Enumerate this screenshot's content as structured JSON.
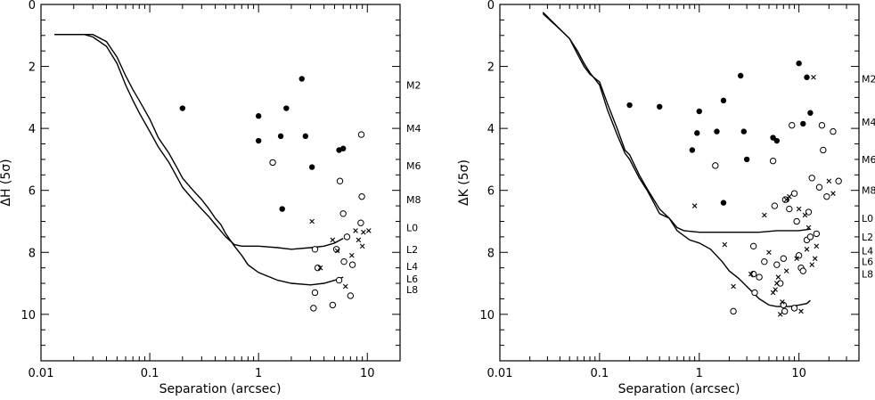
{
  "chart_data": [
    {
      "type": "scatter",
      "xlabel": "Separation (arcsec)",
      "ylabel": "ΔH (5σ)",
      "xscale": "log",
      "xlim": [
        0.01,
        20
      ],
      "ylim": [
        11.5,
        0
      ],
      "grid": false,
      "x_ticks": [
        "0.01",
        "0.1",
        "1",
        "10"
      ],
      "y_ticks": [
        "0",
        "2",
        "4",
        "6",
        "8",
        "10"
      ],
      "spectral_type_labels": [
        {
          "label": "M2",
          "y": 2.6
        },
        {
          "label": "M4",
          "y": 4.0
        },
        {
          "label": "M6",
          "y": 5.2
        },
        {
          "label": "M8",
          "y": 6.3
        },
        {
          "label": "L0",
          "y": 7.2
        },
        {
          "label": "L2",
          "y": 7.9
        },
        {
          "label": "L4",
          "y": 8.45
        },
        {
          "label": "L6",
          "y": 8.85
        },
        {
          "label": "L8",
          "y": 9.2
        }
      ],
      "series": [
        {
          "marker": "line",
          "points": [
            [
              0.0133,
              0.97
            ],
            [
              0.025,
              0.97
            ],
            [
              0.03,
              1.05
            ],
            [
              0.04,
              1.35
            ],
            [
              0.05,
              1.9
            ],
            [
              0.06,
              2.6
            ],
            [
              0.07,
              3.1
            ],
            [
              0.08,
              3.5
            ],
            [
              0.1,
              4.1
            ],
            [
              0.12,
              4.6
            ],
            [
              0.15,
              5.1
            ],
            [
              0.18,
              5.6
            ],
            [
              0.2,
              5.9
            ],
            [
              0.25,
              6.3
            ],
            [
              0.3,
              6.6
            ],
            [
              0.35,
              6.85
            ],
            [
              0.4,
              7.1
            ],
            [
              0.5,
              7.5
            ],
            [
              0.6,
              7.75
            ],
            [
              0.7,
              7.8
            ],
            [
              1.0,
              7.8
            ],
            [
              1.5,
              7.85
            ],
            [
              2.0,
              7.9
            ],
            [
              3.0,
              7.85
            ],
            [
              4.0,
              7.8
            ],
            [
              5.0,
              7.7
            ],
            [
              6.0,
              7.55
            ]
          ]
        },
        {
          "marker": "line",
          "points": [
            [
              0.0133,
              0.97
            ],
            [
              0.03,
              0.97
            ],
            [
              0.04,
              1.2
            ],
            [
              0.05,
              1.7
            ],
            [
              0.06,
              2.3
            ],
            [
              0.07,
              2.75
            ],
            [
              0.08,
              3.1
            ],
            [
              0.1,
              3.7
            ],
            [
              0.12,
              4.3
            ],
            [
              0.15,
              4.8
            ],
            [
              0.18,
              5.3
            ],
            [
              0.2,
              5.6
            ],
            [
              0.25,
              6.0
            ],
            [
              0.3,
              6.3
            ],
            [
              0.35,
              6.6
            ],
            [
              0.4,
              6.9
            ],
            [
              0.45,
              7.1
            ],
            [
              0.5,
              7.4
            ],
            [
              0.6,
              7.8
            ],
            [
              0.7,
              8.1
            ],
            [
              0.8,
              8.4
            ],
            [
              1.0,
              8.65
            ],
            [
              1.5,
              8.9
            ],
            [
              2.0,
              9.0
            ],
            [
              3.0,
              9.05
            ],
            [
              4.0,
              9.0
            ],
            [
              5.0,
              8.9
            ],
            [
              6.0,
              8.8
            ]
          ]
        },
        {
          "marker": "filled-circle",
          "points": [
            [
              0.2,
              3.35
            ],
            [
              1.0,
              3.6
            ],
            [
              1.0,
              4.4
            ],
            [
              1.6,
              4.25
            ],
            [
              1.8,
              3.35
            ],
            [
              1.65,
              6.6
            ],
            [
              2.5,
              2.4
            ],
            [
              2.7,
              4.25
            ],
            [
              3.1,
              5.25
            ],
            [
              5.5,
              4.7
            ],
            [
              6.0,
              4.65
            ]
          ]
        },
        {
          "marker": "open-circle",
          "points": [
            [
              1.35,
              5.1
            ],
            [
              3.3,
              7.9
            ],
            [
              3.5,
              8.5
            ],
            [
              3.3,
              9.3
            ],
            [
              3.2,
              9.8
            ],
            [
              4.8,
              9.7
            ],
            [
              5.2,
              7.9
            ],
            [
              5.5,
              8.9
            ],
            [
              5.6,
              5.7
            ],
            [
              6.0,
              6.75
            ],
            [
              6.1,
              8.3
            ],
            [
              6.5,
              7.5
            ],
            [
              7.0,
              9.4
            ],
            [
              7.3,
              8.4
            ],
            [
              8.7,
              7.05
            ],
            [
              8.8,
              4.2
            ],
            [
              8.9,
              6.2
            ]
          ]
        },
        {
          "marker": "cross",
          "points": [
            [
              3.1,
              7.0
            ],
            [
              3.7,
              8.5
            ],
            [
              4.8,
              7.6
            ],
            [
              5.3,
              7.95
            ],
            [
              6.3,
              9.1
            ],
            [
              7.2,
              8.1
            ],
            [
              7.8,
              7.3
            ],
            [
              8.3,
              7.6
            ],
            [
              9.0,
              7.8
            ],
            [
              9.2,
              7.35
            ],
            [
              10.3,
              7.3
            ]
          ]
        }
      ]
    },
    {
      "type": "scatter",
      "xlabel": "Separation (arcsec)",
      "ylabel": "ΔK (5σ)",
      "xscale": "log",
      "xlim": [
        0.01,
        40
      ],
      "ylim": [
        11.5,
        0
      ],
      "grid": false,
      "x_ticks": [
        "0.01",
        "0.1",
        "1",
        "10"
      ],
      "y_ticks": [
        "0",
        "2",
        "4",
        "6",
        "8",
        "10"
      ],
      "spectral_type_labels": [
        {
          "label": "M2",
          "y": 2.4
        },
        {
          "label": "M4",
          "y": 3.8
        },
        {
          "label": "M6",
          "y": 5.0
        },
        {
          "label": "M8",
          "y": 6.0
        },
        {
          "label": "L0",
          "y": 6.9
        },
        {
          "label": "L2",
          "y": 7.5
        },
        {
          "label": "L4",
          "y": 7.95
        },
        {
          "label": "L6",
          "y": 8.3
        },
        {
          "label": "L8",
          "y": 8.7
        }
      ],
      "series": [
        {
          "marker": "line",
          "points": [
            [
              0.027,
              0.25
            ],
            [
              0.04,
              0.8
            ],
            [
              0.05,
              1.1
            ],
            [
              0.06,
              1.6
            ],
            [
              0.07,
              2.0
            ],
            [
              0.08,
              2.25
            ],
            [
              0.1,
              2.5
            ],
            [
              0.12,
              3.2
            ],
            [
              0.15,
              4.0
            ],
            [
              0.18,
              4.7
            ],
            [
              0.2,
              4.85
            ],
            [
              0.25,
              5.5
            ],
            [
              0.3,
              5.95
            ],
            [
              0.35,
              6.3
            ],
            [
              0.4,
              6.6
            ],
            [
              0.5,
              6.9
            ],
            [
              0.6,
              7.2
            ],
            [
              0.7,
              7.3
            ],
            [
              1.0,
              7.35
            ],
            [
              2.0,
              7.35
            ],
            [
              4.0,
              7.35
            ],
            [
              6.0,
              7.3
            ],
            [
              8.0,
              7.3
            ],
            [
              10.0,
              7.3
            ],
            [
              13.0,
              7.25
            ]
          ]
        },
        {
          "marker": "line",
          "points": [
            [
              0.027,
              0.3
            ],
            [
              0.04,
              0.8
            ],
            [
              0.05,
              1.1
            ],
            [
              0.06,
              1.5
            ],
            [
              0.07,
              1.9
            ],
            [
              0.08,
              2.2
            ],
            [
              0.1,
              2.6
            ],
            [
              0.12,
              3.4
            ],
            [
              0.15,
              4.2
            ],
            [
              0.18,
              4.8
            ],
            [
              0.2,
              5.0
            ],
            [
              0.25,
              5.6
            ],
            [
              0.3,
              6.0
            ],
            [
              0.35,
              6.4
            ],
            [
              0.4,
              6.75
            ],
            [
              0.5,
              6.9
            ],
            [
              0.6,
              7.3
            ],
            [
              0.8,
              7.6
            ],
            [
              1.0,
              7.7
            ],
            [
              1.3,
              7.9
            ],
            [
              1.7,
              8.3
            ],
            [
              2.0,
              8.6
            ],
            [
              2.5,
              8.85
            ],
            [
              3.0,
              9.1
            ],
            [
              4.0,
              9.5
            ],
            [
              5.0,
              9.7
            ],
            [
              6.0,
              9.75
            ],
            [
              8.0,
              9.75
            ],
            [
              10.0,
              9.7
            ],
            [
              12.0,
              9.65
            ],
            [
              13.0,
              9.55
            ]
          ]
        },
        {
          "marker": "filled-circle",
          "points": [
            [
              0.2,
              3.25
            ],
            [
              0.4,
              3.3
            ],
            [
              0.85,
              4.7
            ],
            [
              0.95,
              4.15
            ],
            [
              1.0,
              3.45
            ],
            [
              1.5,
              4.1
            ],
            [
              1.75,
              3.1
            ],
            [
              1.75,
              6.4
            ],
            [
              2.6,
              2.3
            ],
            [
              2.8,
              4.1
            ],
            [
              3.0,
              5.0
            ],
            [
              5.5,
              4.3
            ],
            [
              6.0,
              4.4
            ],
            [
              7.5,
              6.3
            ],
            [
              10.0,
              1.9
            ],
            [
              11.0,
              3.85
            ],
            [
              12.0,
              2.35
            ],
            [
              13.0,
              3.5
            ]
          ]
        },
        {
          "marker": "open-circle",
          "points": [
            [
              1.45,
              5.2
            ],
            [
              3.5,
              8.7
            ],
            [
              4.5,
              8.3
            ],
            [
              5.5,
              5.05
            ],
            [
              5.7,
              6.5
            ],
            [
              6.0,
              8.4
            ],
            [
              6.5,
              9.0
            ],
            [
              7.0,
              9.7
            ],
            [
              7.0,
              8.2
            ],
            [
              7.3,
              6.3
            ],
            [
              8.0,
              6.6
            ],
            [
              9.0,
              6.1
            ],
            [
              9.5,
              7.0
            ],
            [
              10.0,
              8.1
            ],
            [
              10.5,
              8.5
            ],
            [
              11.0,
              8.6
            ],
            [
              12.0,
              7.6
            ],
            [
              13.0,
              7.5
            ],
            [
              13.5,
              5.6
            ],
            [
              15.0,
              7.4
            ],
            [
              16.0,
              5.9
            ],
            [
              17.0,
              3.9
            ],
            [
              17.5,
              4.7
            ],
            [
              19.0,
              6.2
            ],
            [
              22.0,
              4.1
            ],
            [
              25.0,
              5.7
            ],
            [
              8.5,
              3.9
            ],
            [
              12.5,
              6.7
            ],
            [
              7.2,
              9.9
            ],
            [
              3.5,
              7.8
            ],
            [
              3.6,
              9.3
            ],
            [
              4.0,
              8.8
            ],
            [
              2.2,
              9.9
            ],
            [
              9.0,
              9.8
            ]
          ]
        },
        {
          "marker": "cross",
          "points": [
            [
              0.9,
              6.5
            ],
            [
              1.8,
              7.75
            ],
            [
              2.2,
              9.1
            ],
            [
              3.3,
              8.7
            ],
            [
              4.5,
              6.8
            ],
            [
              5.0,
              8.0
            ],
            [
              5.5,
              9.3
            ],
            [
              5.8,
              9.2
            ],
            [
              6.0,
              9.0
            ],
            [
              6.2,
              8.8
            ],
            [
              6.5,
              10.0
            ],
            [
              6.8,
              9.6
            ],
            [
              7.5,
              8.6
            ],
            [
              7.5,
              6.3
            ],
            [
              8.0,
              6.2
            ],
            [
              9.5,
              8.2
            ],
            [
              10.0,
              6.6
            ],
            [
              10.5,
              9.9
            ],
            [
              11.5,
              6.8
            ],
            [
              12.0,
              7.9
            ],
            [
              13.5,
              8.4
            ],
            [
              14.0,
              2.35
            ],
            [
              14.5,
              8.2
            ],
            [
              15.0,
              7.8
            ],
            [
              20.0,
              5.7
            ],
            [
              22.0,
              6.1
            ],
            [
              12.5,
              7.2
            ]
          ]
        }
      ]
    }
  ]
}
